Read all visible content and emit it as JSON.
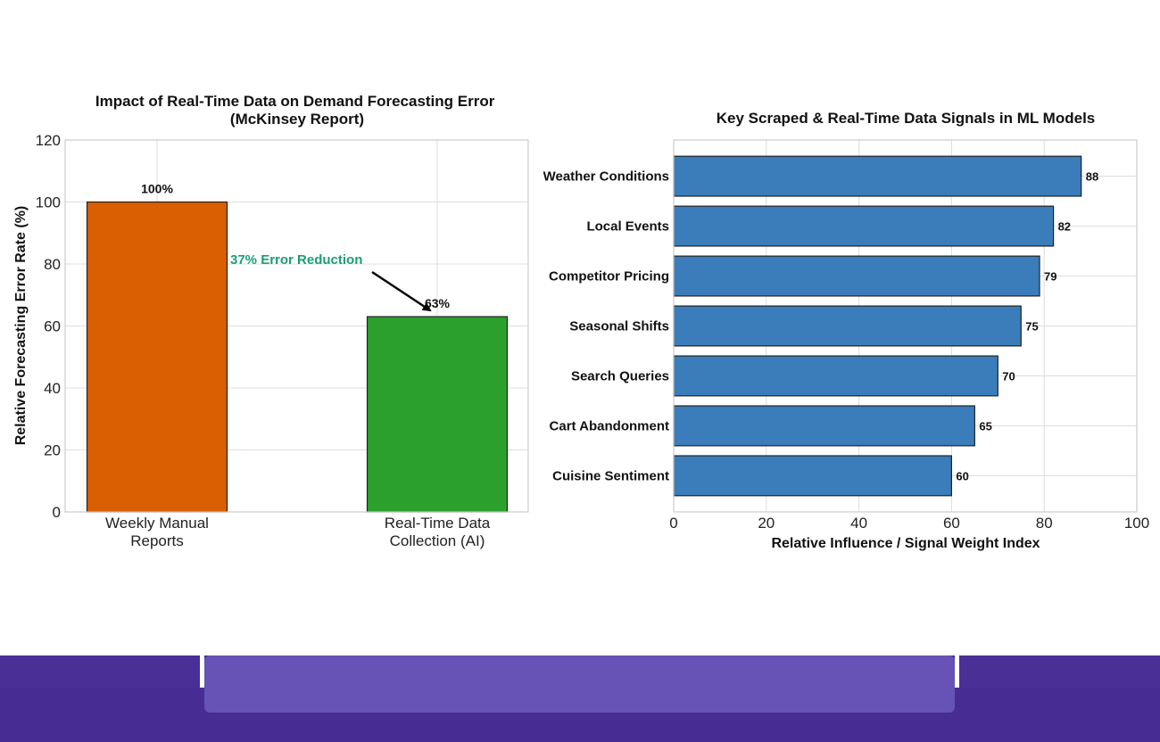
{
  "chart_data": [
    {
      "type": "bar",
      "title_line1": "Impact of Real-Time Data on Demand Forecasting Error",
      "title_line2": "(McKinsey Report)",
      "ylabel": "Relative Forecasting Error Rate (%)",
      "ylim": [
        0,
        120
      ],
      "yticks": [
        0,
        20,
        40,
        60,
        80,
        100,
        120
      ],
      "grid": true,
      "categories": [
        {
          "line1": "Weekly Manual",
          "line2": "Reports"
        },
        {
          "line1": "Real-Time Data",
          "line2": "Collection (AI)"
        }
      ],
      "values": [
        100,
        63
      ],
      "value_labels": [
        "100%",
        "63%"
      ],
      "colors": [
        "#d95f02",
        "#2ca02c"
      ],
      "annotation": {
        "text": "37% Error Reduction",
        "color": "#1b9e77"
      }
    },
    {
      "type": "bar",
      "orientation": "horizontal",
      "title": "Key Scraped & Real-Time Data Signals in ML Models",
      "xlabel": "Relative Influence / Signal Weight Index",
      "xlim": [
        0,
        100
      ],
      "xticks": [
        0,
        20,
        40,
        60,
        80,
        100
      ],
      "grid": true,
      "categories": [
        "Weather Conditions",
        "Local Events",
        "Competitor Pricing",
        "Seasonal Shifts",
        "Search Queries",
        "Cart Abandonment",
        "Cuisine Sentiment"
      ],
      "values": [
        88,
        82,
        79,
        75,
        70,
        65,
        60
      ],
      "value_labels": [
        "88",
        "82",
        "79",
        "75",
        "70",
        "65",
        "60"
      ],
      "color": "#3a7dba"
    }
  ]
}
